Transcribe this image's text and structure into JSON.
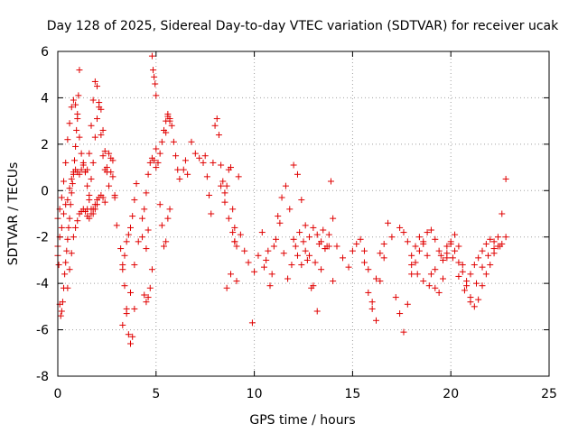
{
  "chart_data": {
    "type": "scatter",
    "title": "Day 128 of 2025, Sidereal Day-to-day VTEC variation (SDTVAR) for receiver ucak",
    "xlabel": "GPS time / hours",
    "ylabel": "SDTVAR / TECUs",
    "xlim": [
      0,
      25
    ],
    "ylim": [
      -8,
      6
    ],
    "xticks": [
      0,
      5,
      10,
      15,
      20,
      25
    ],
    "yticks": [
      -8,
      -6,
      -4,
      -2,
      0,
      2,
      4,
      6
    ],
    "grid": true,
    "marker": "plus",
    "color": "#e00000",
    "series": [
      {
        "name": "ucak",
        "x": [
          0.0,
          0.05,
          0.1,
          0.15,
          0.2,
          0.25,
          0.3,
          0.35,
          0.4,
          0.45,
          0.5,
          0.55,
          0.6,
          0.65,
          0.7,
          0.75,
          0.8,
          0.85,
          0.9,
          0.95,
          1.0,
          1.05,
          1.1,
          0.0,
          0.1,
          0.2,
          0.3,
          0.4,
          0.5,
          0.6,
          0.7,
          0.8,
          0.9,
          1.0,
          1.1,
          1.2,
          1.3,
          1.4,
          1.5,
          1.6,
          1.7,
          1.8,
          1.9,
          2.0,
          2.1,
          2.2,
          2.3,
          2.4,
          2.5,
          2.6,
          2.7,
          2.8,
          2.9,
          3.0,
          0.5,
          0.6,
          0.7,
          0.8,
          0.9,
          1.0,
          1.1,
          1.2,
          1.3,
          1.4,
          1.5,
          1.6,
          1.7,
          1.8,
          1.9,
          2.0,
          2.1,
          2.2,
          2.3,
          2.4,
          1.5,
          1.6,
          1.7,
          1.8,
          1.9,
          2.0,
          2.1,
          2.2,
          2.3,
          2.4,
          2.5,
          2.6,
          2.7,
          2.8,
          2.9,
          0.0,
          0.1,
          0.2,
          0.3,
          0.4,
          0.5,
          0.6,
          0.7,
          0.8,
          0.9,
          1.0,
          1.1,
          1.2,
          1.3,
          1.4,
          1.5,
          1.6,
          1.7,
          1.8,
          1.9,
          2.0,
          3.2,
          3.3,
          3.4,
          3.5,
          3.6,
          3.7,
          3.8,
          3.9,
          3.3,
          3.4,
          3.5,
          3.6,
          3.7,
          3.8,
          3.9,
          4.0,
          3.3,
          3.5,
          3.7,
          3.9,
          4.1,
          4.3,
          4.5,
          4.6,
          4.7,
          4.8,
          4.9,
          5.0,
          4.8,
          4.85,
          4.9,
          4.95,
          5.0,
          4.4,
          4.5,
          4.6,
          4.7,
          4.8,
          4.3,
          4.4,
          4.5,
          4.6,
          5.0,
          5.1,
          5.2,
          5.3,
          5.4,
          5.5,
          5.6,
          5.7,
          5.8,
          5.9,
          6.0,
          6.1,
          6.2,
          5.2,
          5.3,
          5.4,
          5.5,
          5.6,
          5.7,
          5.5,
          5.6,
          5.7,
          6.4,
          6.5,
          6.6,
          6.8,
          7.0,
          7.2,
          7.4,
          7.5,
          7.6,
          7.7,
          7.8,
          7.9,
          8.0,
          8.1,
          8.2,
          8.3,
          8.4,
          8.5,
          8.6,
          8.7,
          8.8,
          8.9,
          9.0,
          9.1,
          9.2,
          8.3,
          8.5,
          8.7,
          8.9,
          9.0,
          9.1,
          8.6,
          8.8,
          9.0,
          9.3,
          9.5,
          9.7,
          9.9,
          10.0,
          10.2,
          10.4,
          10.6,
          10.8,
          11.0,
          11.2,
          11.4,
          11.6,
          11.8,
          12.0,
          12.2,
          12.4,
          12.6,
          12.8,
          13.0,
          13.2,
          13.4,
          13.6,
          13.8,
          14.0,
          10.5,
          10.7,
          10.9,
          11.1,
          11.3,
          11.5,
          11.7,
          11.9,
          12.1,
          12.3,
          12.5,
          12.7,
          12.9,
          13.1,
          13.3,
          13.5,
          13.7,
          13.9,
          12.0,
          12.2,
          12.4,
          12.6,
          12.8,
          13.0,
          13.2,
          13.4,
          13.6,
          13.8,
          14.0,
          14.2,
          14.5,
          14.8,
          15.0,
          15.2,
          15.4,
          15.6,
          15.8,
          16.0,
          16.2,
          16.4,
          16.6,
          16.8,
          17.0,
          15.6,
          15.8,
          16.0,
          16.2,
          16.4,
          16.6,
          17.2,
          17.4,
          17.6,
          17.8,
          18.0,
          18.2,
          18.4,
          18.6,
          18.8,
          19.0,
          19.2,
          19.4,
          19.6,
          19.8,
          20.0,
          20.2,
          20.4,
          20.6,
          20.8,
          21.0,
          21.2,
          21.4,
          21.6,
          21.8,
          22.0,
          22.2,
          22.4,
          22.6,
          22.8,
          17.4,
          17.6,
          17.8,
          18.0,
          18.2,
          18.4,
          18.6,
          18.8,
          19.0,
          19.2,
          19.4,
          19.6,
          19.8,
          20.0,
          20.2,
          20.4,
          20.6,
          20.8,
          21.0,
          21.2,
          21.4,
          21.6,
          21.8,
          22.0,
          22.2,
          22.4,
          22.6,
          22.8,
          18.0,
          18.3,
          18.6,
          18.9,
          19.2,
          19.5,
          19.8,
          20.1,
          20.4,
          20.7,
          21.0,
          21.3,
          21.6,
          21.9,
          22.2,
          22.5
        ],
        "y": [
          -2.8,
          -3.2,
          -4.9,
          -5.4,
          -5.2,
          -4.8,
          -4.2,
          -3.6,
          -3.1,
          -2.6,
          -2.1,
          -1.6,
          -1.2,
          -0.6,
          -0.1,
          0.3,
          0.7,
          1.3,
          1.9,
          2.6,
          3.3,
          4.1,
          5.2,
          -1.2,
          -0.8,
          -0.3,
          0.4,
          1.2,
          2.2,
          2.9,
          3.6,
          3.9,
          3.7,
          3.1,
          2.3,
          1.6,
          1.1,
          0.8,
          0.9,
          1.6,
          2.8,
          3.9,
          4.7,
          4.5,
          3.6,
          2.4,
          1.5,
          0.9,
          1.0,
          1.6,
          1.4,
          0.6,
          -0.3,
          -1.5,
          -4.2,
          -3.4,
          -2.7,
          -2.0,
          -1.6,
          -1.3,
          -1.0,
          -0.9,
          -0.8,
          -0.9,
          -1.1,
          -1.2,
          -1.0,
          -0.8,
          -0.6,
          -0.4,
          -0.3,
          -0.2,
          -0.3,
          -0.5,
          -0.8,
          -0.2,
          0.5,
          1.2,
          2.3,
          3.1,
          3.8,
          3.5,
          2.6,
          1.7,
          0.8,
          0.2,
          0.8,
          1.3,
          -0.2,
          -2.4,
          -2.0,
          -1.6,
          -1.0,
          -0.6,
          -0.4,
          0.1,
          0.5,
          0.8,
          0.9,
          0.8,
          0.7,
          0.9,
          1.2,
          0.8,
          0.2,
          -0.4,
          -0.8,
          -1.0,
          -0.8,
          -0.6,
          -2.5,
          -3.2,
          -4.1,
          -5.1,
          -6.2,
          -6.6,
          -6.3,
          -5.1,
          -3.4,
          -2.8,
          -2.2,
          -1.9,
          -1.6,
          -1.1,
          -0.4,
          0.3,
          -5.8,
          -5.3,
          -4.4,
          -3.2,
          -2.2,
          -1.2,
          -0.1,
          0.7,
          1.2,
          1.4,
          1.3,
          1.0,
          5.8,
          5.2,
          4.9,
          4.6,
          4.1,
          -4.5,
          -4.8,
          -4.6,
          -4.2,
          -3.4,
          -2.0,
          -0.8,
          -2.5,
          -1.7,
          1.8,
          1.2,
          1.6,
          2.1,
          2.6,
          3.0,
          3.3,
          3.1,
          2.8,
          2.1,
          1.5,
          0.9,
          0.5,
          -0.6,
          -1.5,
          -2.4,
          -2.2,
          -1.2,
          -0.8,
          2.5,
          3.2,
          3.0,
          0.9,
          1.3,
          0.7,
          2.1,
          1.6,
          1.4,
          1.2,
          1.5,
          0.6,
          -0.2,
          -1.0,
          1.2,
          2.8,
          3.1,
          2.4,
          1.1,
          0.4,
          -0.1,
          0.2,
          0.9,
          1.0,
          -0.8,
          -1.6,
          -2.4,
          0.6,
          0.2,
          -0.5,
          -1.2,
          -1.8,
          -2.2,
          -3.9,
          -4.2,
          -3.6,
          -2.2,
          -1.9,
          -2.6,
          -3.1,
          -5.7,
          -3.5,
          -2.8,
          -1.8,
          -3.0,
          -4.1,
          -2.4,
          -1.1,
          -0.3,
          0.2,
          -0.8,
          -2.1,
          -2.8,
          -3.2,
          -2.6,
          -2.0,
          -1.6,
          -1.9,
          -2.2,
          -2.5,
          -2.4,
          -3.9,
          -3.3,
          -2.6,
          -3.6,
          -2.1,
          -1.4,
          -2.7,
          -3.8,
          -3.2,
          -2.4,
          -1.8,
          -2.2,
          -3.0,
          -4.2,
          -3.1,
          -2.3,
          -1.7,
          -2.4,
          0.4,
          1.1,
          0.7,
          -0.4,
          -1.5,
          -2.8,
          -4.1,
          -5.2,
          -3.4,
          -2.5,
          -1.9,
          -1.2,
          -2.4,
          -2.9,
          -3.3,
          -2.6,
          -2.3,
          -2.1,
          -2.6,
          -3.4,
          -4.8,
          -5.6,
          -3.9,
          -2.3,
          -1.4,
          -2.0,
          -3.1,
          -4.4,
          -5.1,
          -3.8,
          -2.7,
          -2.9,
          -4.6,
          -5.3,
          -6.1,
          -4.9,
          -3.6,
          -2.4,
          -2.0,
          -2.3,
          -2.8,
          -3.6,
          -4.2,
          -4.4,
          -3.8,
          -2.9,
          -2.2,
          -1.9,
          -2.4,
          -3.2,
          -4.1,
          -4.8,
          -5.0,
          -4.7,
          -4.1,
          -3.6,
          -3.2,
          -2.7,
          -2.0,
          -1.0,
          0.5,
          -1.6,
          -1.8,
          -2.2,
          -2.8,
          -3.1,
          -2.6,
          -2.2,
          -1.8,
          -1.7,
          -2.1,
          -2.6,
          -3.0,
          -2.7,
          -2.3,
          -2.6,
          -3.1,
          -3.5,
          -3.9,
          -3.6,
          -3.2,
          -2.9,
          -2.6,
          -2.3,
          -2.1,
          -2.2,
          -2.4,
          -2.3,
          -2.0,
          -3.2,
          -3.6,
          -3.9,
          -4.1,
          -3.4,
          -2.8,
          -2.4,
          -2.9,
          -3.7,
          -4.3,
          -4.6,
          -4.0,
          -3.3,
          -2.8,
          -2.5,
          -2.4
        ]
      }
    ]
  }
}
